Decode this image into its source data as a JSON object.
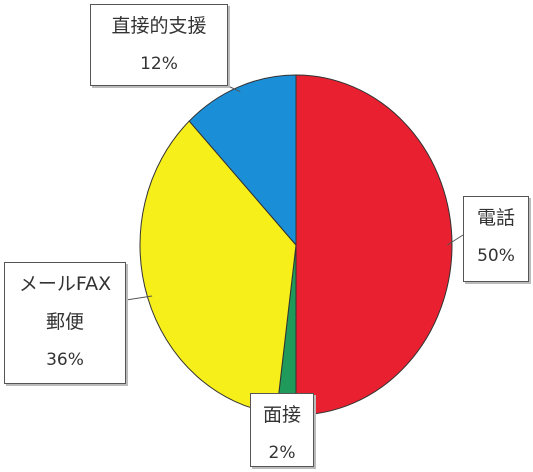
{
  "chart_data": {
    "type": "pie",
    "categories": [
      "電話",
      "面接",
      "メールFAX\n郵便",
      "直接的支援"
    ],
    "values": [
      50,
      2,
      36,
      12
    ],
    "value_labels": [
      "50%",
      "2%",
      "36%",
      "12%"
    ],
    "colors": [
      "#e8202f",
      "#1f9a5a",
      "#f7ef1a",
      "#1a8fd8"
    ]
  }
}
